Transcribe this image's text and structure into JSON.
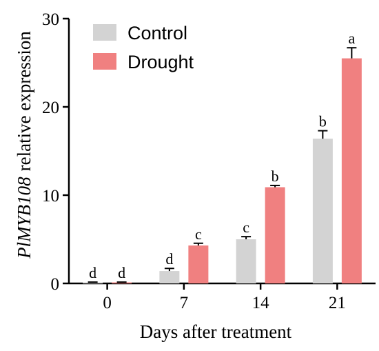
{
  "chart_data": {
    "type": "bar",
    "title": "",
    "xlabel": "Days after treatment",
    "ylabel_italic": "PlMYB108",
    "ylabel_rest": "relative expression",
    "categories": [
      "0",
      "7",
      "14",
      "21"
    ],
    "ylim": [
      0,
      30
    ],
    "yticks": [
      "0",
      "10",
      "20",
      "30"
    ],
    "grid": false,
    "legend_position": "top-left",
    "series": [
      {
        "name": "Control",
        "color": "#d3d3d3",
        "values": [
          0.1,
          1.4,
          5.0,
          16.4
        ],
        "errors": [
          0.05,
          0.3,
          0.3,
          0.9
        ],
        "letters": [
          "d",
          "d",
          "c",
          "b"
        ]
      },
      {
        "name": "Drought",
        "color": "#f08080",
        "values": [
          0.1,
          4.3,
          10.9,
          25.5
        ],
        "errors": [
          0.05,
          0.25,
          0.2,
          1.2
        ],
        "letters": [
          "d",
          "c",
          "b",
          "a"
        ]
      }
    ]
  }
}
